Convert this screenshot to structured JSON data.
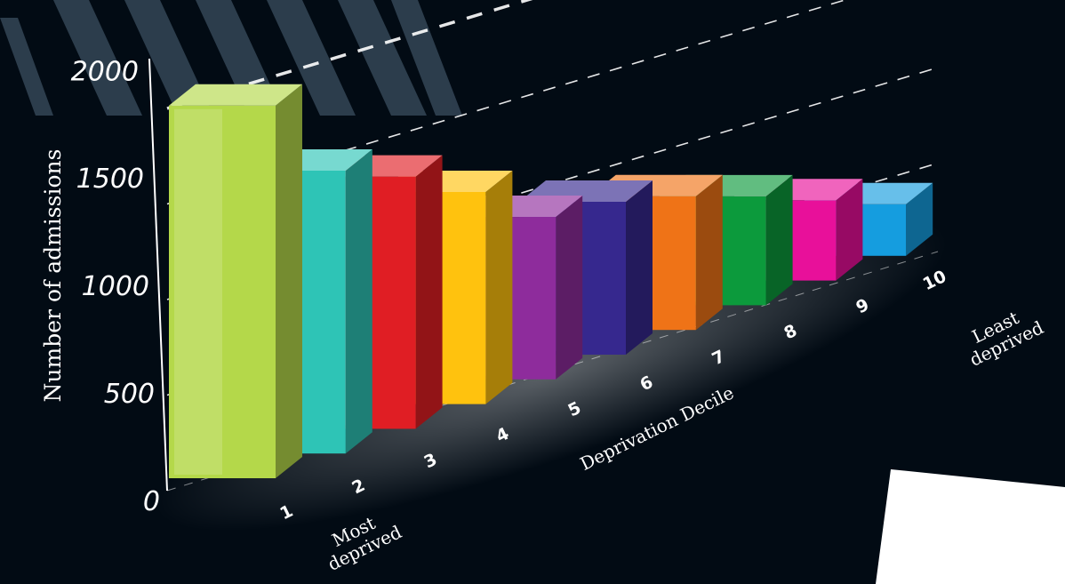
{
  "chart_data": {
    "type": "bar",
    "categories": [
      "1",
      "2",
      "3",
      "4",
      "5",
      "6",
      "7",
      "8",
      "9",
      "10"
    ],
    "values": [
      1950,
      1480,
      1320,
      1110,
      850,
      800,
      700,
      570,
      420,
      270
    ],
    "xlabel": "Deprivation Decile",
    "ylabel": "Number of admissions",
    "ylim": [
      0,
      2000
    ],
    "yticks": [
      "0",
      "500",
      "1000",
      "1500",
      "2000"
    ],
    "x_start_label": "Most deprived",
    "x_end_label": "Least deprived",
    "grid": true,
    "legend": "none",
    "colors": [
      "#b4d84a",
      "#2ec4b6",
      "#e01e24",
      "#ffc20e",
      "#8e2c9c",
      "#36288e",
      "#ef7317",
      "#0c9a3c",
      "#e8109a",
      "#159ddf"
    ]
  }
}
